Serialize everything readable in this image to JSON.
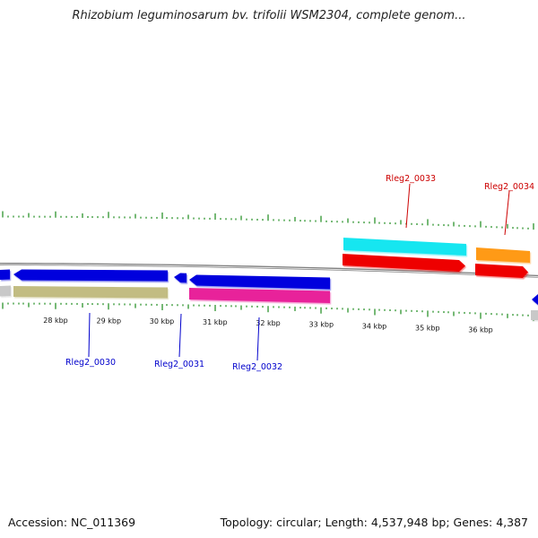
{
  "title": "Rhizobium leguminosarum bv. trifolii WSM2304, complete genom...",
  "footer": {
    "accession": "Accession: NC_011369",
    "summary": "Topology: circular; Length: 4,537,948 bp; Genes: 4,387"
  },
  "scale": {
    "unit": "kbp",
    "ticks": [
      {
        "kbp": 28,
        "label": "28 kbp"
      },
      {
        "kbp": 29,
        "label": "29 kbp"
      },
      {
        "kbp": 30,
        "label": "30 kbp"
      },
      {
        "kbp": 31,
        "label": "31 kbp"
      },
      {
        "kbp": 32,
        "label": "32 kbp"
      },
      {
        "kbp": 33,
        "label": "33 kbp"
      },
      {
        "kbp": 34,
        "label": "34 kbp"
      },
      {
        "kbp": 35,
        "label": "35 kbp"
      },
      {
        "kbp": 36,
        "label": "36 kbp"
      }
    ]
  },
  "colors": {
    "backbone": "#808080",
    "ticks": "#1a8a1a",
    "forward_label": "#cc0000",
    "reverse_label": "#0000cc",
    "blue_feature": "#0000dd",
    "khaki_feature": "#c2bc82",
    "pink_feature": "#e8209a",
    "cyan_feature": "#19e6f0",
    "orange_feature": "#ff9a19",
    "red_feature": "#ee0000",
    "grey_feature": "#c8c8c8"
  },
  "gene_labels": [
    {
      "id": "Rleg2_0030",
      "strand": "reverse"
    },
    {
      "id": "Rleg2_0031",
      "strand": "reverse"
    },
    {
      "id": "Rleg2_0032",
      "strand": "reverse"
    },
    {
      "id": "Rleg2_0033",
      "strand": "forward"
    },
    {
      "id": "Rleg2_0034",
      "strand": "forward"
    }
  ]
}
